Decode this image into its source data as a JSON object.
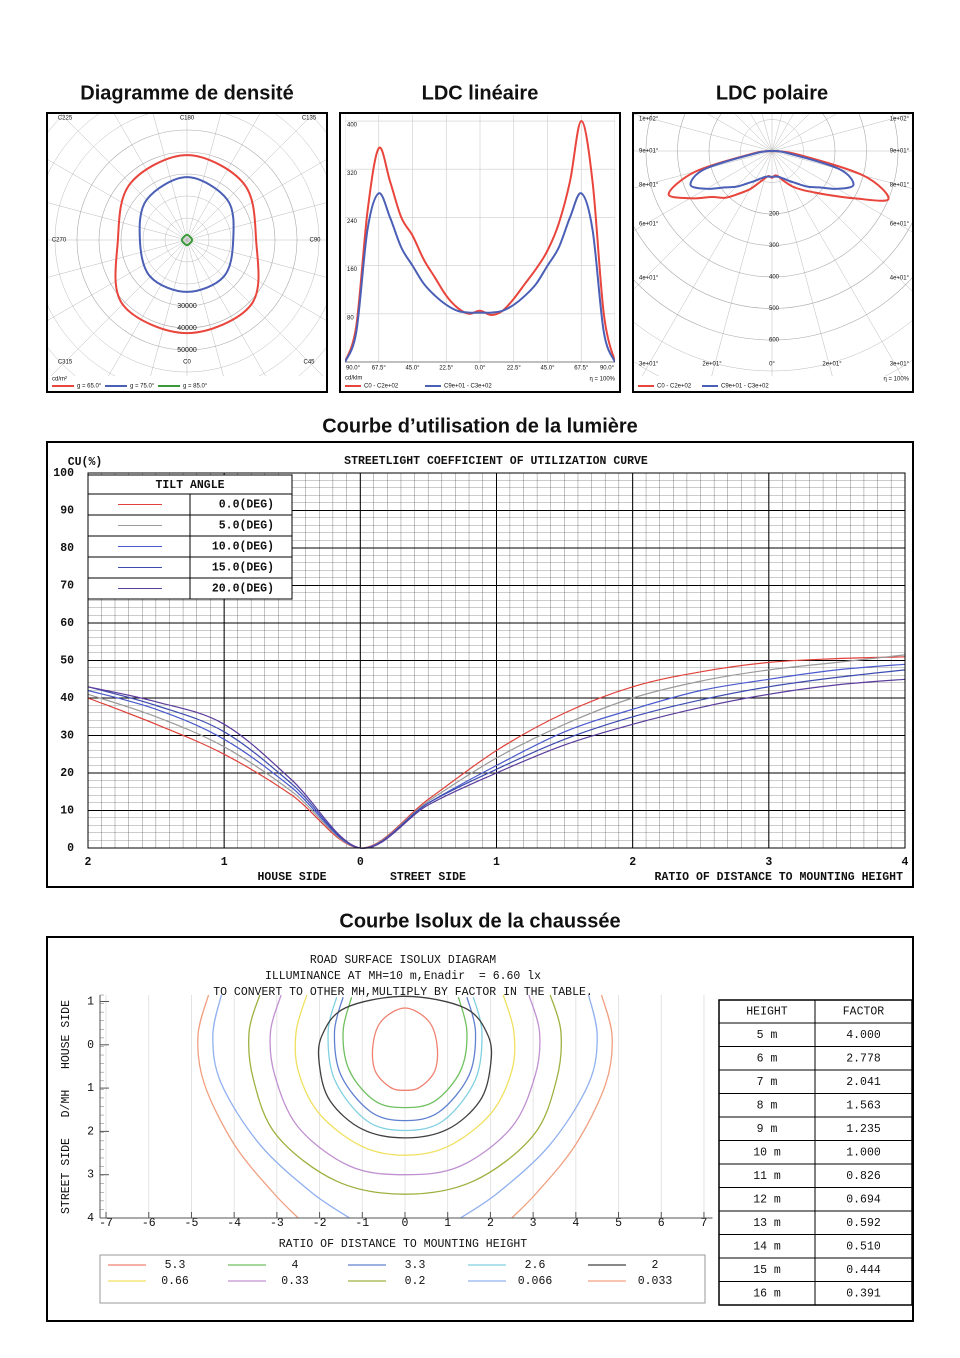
{
  "chart_data": [
    {
      "type": "polar-density",
      "title": "Diagramme de densité",
      "unit": "cd/m²",
      "categories": [
        "C180",
        "C135",
        "C90",
        "C45",
        "C0",
        "C315",
        "C270",
        "C225"
      ],
      "angles": [
        180,
        135,
        90,
        45,
        0,
        315,
        270,
        225
      ],
      "rlim": [
        0,
        50000
      ],
      "rticks": [
        30000,
        40000,
        50000
      ],
      "series": [
        {
          "name": "g = 65.0°",
          "color": "#e8453c",
          "values": [
            38600,
            36400,
            31400,
            41400,
            42300,
            41400,
            31400,
            36400
          ]
        },
        {
          "name": "g = 75.0°",
          "color": "#4a5fb5",
          "values": [
            28600,
            25900,
            21000,
            23600,
            23600,
            23600,
            21400,
            25900
          ]
        },
        {
          "name": "g = 85.0°",
          "color": "#3a9a3a",
          "values": [
            2300,
            2000,
            2300,
            2000,
            2300,
            2000,
            2300,
            2000
          ]
        }
      ]
    },
    {
      "type": "line",
      "title": "LDC linéaire",
      "unit": "cd/klm",
      "efficiency_label": "η = 100%",
      "x": [
        -90,
        -82.5,
        -75,
        -67.5,
        -60,
        -52.5,
        -45,
        -37.5,
        -30,
        -22.5,
        -15,
        -7.5,
        0,
        7.5,
        15,
        22.5,
        30,
        37.5,
        45,
        52.5,
        60,
        67.5,
        75,
        82.5,
        90
      ],
      "xlim": [
        -90,
        90
      ],
      "xticks": [
        {
          "value": -90,
          "label": "90.0°"
        },
        {
          "value": -67.5,
          "label": "67.5°"
        },
        {
          "value": -45,
          "label": "45.0°"
        },
        {
          "value": -22.5,
          "label": "22.5°"
        },
        {
          "value": 0,
          "label": "0.0°"
        },
        {
          "value": 22.5,
          "label": "22.5°"
        },
        {
          "value": 45,
          "label": "45.0°"
        },
        {
          "value": 67.5,
          "label": "67.5°"
        },
        {
          "value": 90,
          "label": "90.0°"
        }
      ],
      "ylim": [
        0,
        410
      ],
      "yticks": [
        80,
        160,
        240,
        320,
        400
      ],
      "series": [
        {
          "name": "C0 - C2e+02",
          "color": "#e8453c",
          "values": [
            0,
            60,
            250,
            355,
            300,
            240,
            210,
            170,
            140,
            110,
            90,
            80,
            85,
            78,
            85,
            105,
            130,
            155,
            185,
            230,
            300,
            400,
            300,
            80,
            0
          ]
        },
        {
          "name": "C9e+01 - C3e+02",
          "color": "#4a5fb5",
          "values": [
            0,
            50,
            220,
            280,
            240,
            190,
            160,
            130,
            110,
            95,
            85,
            82,
            82,
            82,
            85,
            95,
            110,
            130,
            160,
            190,
            240,
            280,
            220,
            50,
            0
          ]
        }
      ]
    },
    {
      "type": "polar-ldc",
      "title": "LDC polaire",
      "efficiency_label": "η = 100%",
      "x": [
        -90,
        -82.5,
        -75,
        -67.5,
        -60,
        -52.5,
        -45,
        -37.5,
        -30,
        -22.5,
        -15,
        -7.5,
        0,
        7.5,
        15,
        22.5,
        30,
        37.5,
        45,
        52.5,
        60,
        67.5,
        75,
        82.5,
        90
      ],
      "rlim": [
        0,
        600
      ],
      "rticks": [
        200,
        300,
        400,
        500,
        600
      ],
      "left_labels": [
        "1e+02°",
        "9e+01°",
        "8e+01°",
        "6e+01°",
        "4e+01°",
        "3e+01°"
      ],
      "right_labels": [
        "1e+02°",
        "9e+01°",
        "8e+01°",
        "6e+01°",
        "4e+01°",
        "3e+01°"
      ],
      "bottom_labels": [
        "2e+01°",
        "0°",
        "2e+01°"
      ],
      "series": [
        {
          "name": "C0 - C2e+02",
          "color": "#e8453c",
          "values": [
            0,
            60,
            250,
            355,
            300,
            240,
            210,
            170,
            140,
            110,
            90,
            80,
            85,
            78,
            85,
            105,
            130,
            155,
            185,
            230,
            300,
            400,
            300,
            80,
            0
          ]
        },
        {
          "name": "C9e+01 - C3e+02",
          "color": "#4a5fb5",
          "values": [
            0,
            50,
            220,
            280,
            240,
            190,
            160,
            130,
            110,
            95,
            85,
            82,
            82,
            82,
            85,
            95,
            110,
            130,
            160,
            190,
            240,
            280,
            220,
            50,
            0
          ]
        }
      ]
    },
    {
      "type": "line",
      "title": "Courbe d’utilisation de la lumière",
      "chart_title": "STREETLIGHT COEFFICIENT OF UTILIZATION CURVE",
      "ylabel": "CU(%)",
      "legend_title": "TILT ANGLE",
      "house_label": "HOUSE SIDE",
      "street_label": "STREET SIDE",
      "xlabel": "RATIO OF DISTANCE TO MOUNTING HEIGHT",
      "x": [
        -2,
        -1.5,
        -1,
        -0.5,
        0,
        0.5,
        1,
        1.5,
        2,
        2.5,
        3,
        3.5,
        4
      ],
      "xlim": [
        -2,
        4
      ],
      "xticks": [
        {
          "value": -2,
          "label": "2"
        },
        {
          "value": -1,
          "label": "1"
        },
        0,
        1,
        2,
        3,
        4
      ],
      "ylim": [
        0,
        100
      ],
      "yticks": [
        0,
        10,
        20,
        30,
        40,
        50,
        60,
        70,
        80,
        90,
        100
      ],
      "series": [
        {
          "name": "0.0(DEG)",
          "color": "#e0413a",
          "values": [
            40,
            33,
            25,
            14,
            0,
            13,
            26,
            36,
            43,
            47,
            49.5,
            50.5,
            51
          ]
        },
        {
          "name": "5.0(DEG)",
          "color": "#9a9a9a",
          "values": [
            41,
            35,
            27,
            15,
            0,
            12.5,
            24,
            33,
            40,
            44.5,
            47.5,
            49.5,
            51.5
          ]
        },
        {
          "name": "10.0(DEG)",
          "color": "#4a5acd",
          "values": [
            42,
            37,
            29,
            16,
            0,
            12,
            22,
            31,
            37,
            42,
            45,
            47.5,
            49
          ]
        },
        {
          "name": "15.0(DEG)",
          "color": "#3c4cb0",
          "values": [
            43,
            38,
            31,
            17,
            0,
            12,
            21,
            29,
            35,
            39.5,
            43,
            45.5,
            47.5
          ]
        },
        {
          "name": "20.0(DEG)",
          "color": "#5a3c9c",
          "values": [
            43,
            39,
            33,
            18,
            0,
            11.5,
            20,
            27.5,
            33,
            37.5,
            41,
            43.5,
            45
          ]
        }
      ]
    },
    {
      "type": "contour",
      "title": "Courbe Isolux de la chaussée",
      "chart_title": [
        "ROAD SURFACE ISOLUX DIAGRAM",
        "ILLUMINANCE AT MH=10 m,Enadir  = 6.60 lx",
        "TO CONVERT TO OTHER MH,MULTIPLY BY FACTOR IN THE TABLE."
      ],
      "ylabel": "STREET SIDE   D/MH   HOUSE SIDE",
      "xlabel": "RATIO OF DISTANCE TO MOUNTING HEIGHT",
      "xlim": [
        -7.2,
        7.2
      ],
      "xticks": [
        -7,
        -6,
        -5,
        -4,
        -3,
        -2,
        -1,
        0,
        1,
        2,
        3,
        4,
        5,
        6,
        7
      ],
      "ylim": [
        -1.15,
        4
      ],
      "yticks": [
        {
          "value": -1,
          "label": "1"
        },
        0,
        1,
        2,
        3,
        4
      ],
      "series": [
        {
          "name": "5.3",
          "color": "#f08070",
          "closed": true,
          "x": [
            0,
            0.55,
            0.75,
            0.7,
            0.35,
            0,
            -0.35,
            -0.7,
            -0.75,
            -0.55
          ],
          "y": [
            -0.85,
            -0.55,
            0,
            0.6,
            0.98,
            1.05,
            0.98,
            0.6,
            0,
            -0.55
          ]
        },
        {
          "name": "4",
          "color": "#70c060",
          "x": [
            -1.25,
            -1.45,
            -1.3,
            -0.7,
            0,
            0.7,
            1.3,
            1.45,
            1.25
          ],
          "y": [
            -1.1,
            -0.3,
            0.6,
            1.3,
            1.45,
            1.3,
            0.6,
            -0.3,
            -1.1
          ]
        },
        {
          "name": "3.3",
          "color": "#6080d0",
          "x": [
            -1.45,
            -1.65,
            -1.5,
            -0.8,
            0,
            0.8,
            1.5,
            1.65,
            1.45
          ],
          "y": [
            -1.1,
            -0.3,
            0.7,
            1.55,
            1.75,
            1.55,
            0.7,
            -0.3,
            -1.1
          ]
        },
        {
          "name": "2.6",
          "color": "#80d0e0",
          "x": [
            -1.6,
            -1.8,
            -1.65,
            -0.9,
            0,
            0.9,
            1.65,
            1.8,
            1.6
          ],
          "y": [
            -1.1,
            -0.3,
            0.8,
            1.75,
            1.98,
            1.75,
            0.8,
            -0.3,
            -1.1
          ]
        },
        {
          "name": "2",
          "color": "#404040",
          "closed": true,
          "x": [
            0,
            1.4,
            1.95,
            2.0,
            1.75,
            1.0,
            0,
            -1.0,
            -1.75,
            -2.0,
            -1.95,
            -1.4
          ],
          "y": [
            -1.12,
            -0.85,
            -0.2,
            0.5,
            1.3,
            1.95,
            2.15,
            1.95,
            1.3,
            0.5,
            -0.2,
            -0.85
          ]
        },
        {
          "name": "0.66",
          "color": "#f0e060",
          "x": [
            -2.3,
            -2.55,
            -2.5,
            -2.0,
            -1.0,
            0,
            1.0,
            2.0,
            2.5,
            2.55,
            2.3
          ],
          "y": [
            -1.15,
            -0.3,
            0.6,
            1.6,
            2.35,
            2.55,
            2.35,
            1.6,
            0.6,
            -0.3,
            -1.15
          ]
        },
        {
          "name": "0.33",
          "color": "#c090d0",
          "x": [
            -2.9,
            -3.15,
            -3.05,
            -2.5,
            -1.3,
            0,
            1.3,
            2.5,
            3.05,
            3.15,
            2.9
          ],
          "y": [
            -1.15,
            -0.3,
            0.7,
            1.9,
            2.8,
            3.0,
            2.8,
            1.9,
            0.7,
            -0.3,
            -1.15
          ]
        },
        {
          "name": "0.2",
          "color": "#a0b040",
          "x": [
            -3.4,
            -3.65,
            -3.55,
            -3.0,
            -1.6,
            0,
            1.6,
            3.0,
            3.55,
            3.65,
            3.4
          ],
          "y": [
            -1.15,
            -0.3,
            0.8,
            2.1,
            3.15,
            3.45,
            3.15,
            2.1,
            0.8,
            -0.3,
            -1.15
          ]
        },
        {
          "name": "0.066",
          "color": "#90b0f0",
          "x": [
            -4.3,
            -4.5,
            -4.3,
            -3.4,
            -2.2,
            -1.3,
            null,
            1.3,
            2.2,
            3.4,
            4.3,
            4.5,
            4.3
          ],
          "y": [
            -1.15,
            -0.2,
            0.9,
            2.3,
            3.4,
            4.0,
            null,
            4.0,
            3.4,
            2.3,
            0.9,
            -0.2,
            -1.15
          ]
        },
        {
          "name": "0.033",
          "color": "#f0a080",
          "x": [
            -4.6,
            -4.85,
            -4.7,
            -4.0,
            -3.1,
            -2.5,
            null,
            2.5,
            3.1,
            4.0,
            4.7,
            4.85,
            4.6
          ],
          "y": [
            -1.15,
            -0.2,
            0.9,
            2.3,
            3.4,
            4.0,
            null,
            4.0,
            3.4,
            2.3,
            0.9,
            -0.2,
            -1.15
          ]
        }
      ],
      "table": {
        "header": [
          "HEIGHT",
          "FACTOR"
        ],
        "rows": [
          [
            "5 m",
            "4.000"
          ],
          [
            "6 m",
            "2.778"
          ],
          [
            "7 m",
            "2.041"
          ],
          [
            "8 m",
            "1.563"
          ],
          [
            "9 m",
            "1.235"
          ],
          [
            "10 m",
            "1.000"
          ],
          [
            "11 m",
            "0.826"
          ],
          [
            "12 m",
            "0.694"
          ],
          [
            "13 m",
            "0.592"
          ],
          [
            "14 m",
            "0.510"
          ],
          [
            "15 m",
            "0.444"
          ],
          [
            "16 m",
            "0.391"
          ]
        ]
      }
    }
  ]
}
